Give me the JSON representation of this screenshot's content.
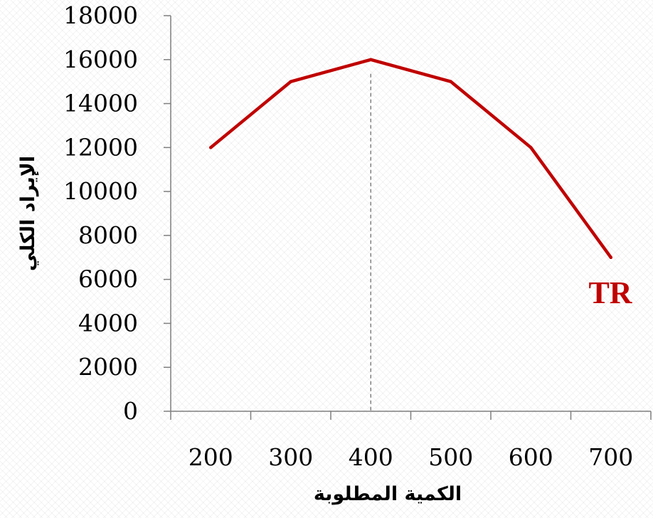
{
  "chart_data": {
    "type": "line",
    "title": "",
    "xlabel": "الكمية المطلوبة",
    "ylabel": "الإيراد الكلي",
    "categories": [
      "200",
      "300",
      "400",
      "500",
      "600",
      "700"
    ],
    "x": [
      200,
      300,
      400,
      500,
      600,
      700
    ],
    "ylim": [
      0,
      18000
    ],
    "yticks": [
      "0",
      "2000",
      "4000",
      "6000",
      "8000",
      "10000",
      "12000",
      "14000",
      "16000",
      "18000"
    ],
    "series": [
      {
        "name": "TR",
        "values": [
          12000,
          15000,
          16000,
          15000,
          12000,
          7000
        ],
        "color": "#c00000"
      }
    ],
    "reference_line": {
      "x": 400,
      "style": "dashed",
      "color": "#808080"
    },
    "grid": false,
    "legend": "series label at right end of line"
  }
}
